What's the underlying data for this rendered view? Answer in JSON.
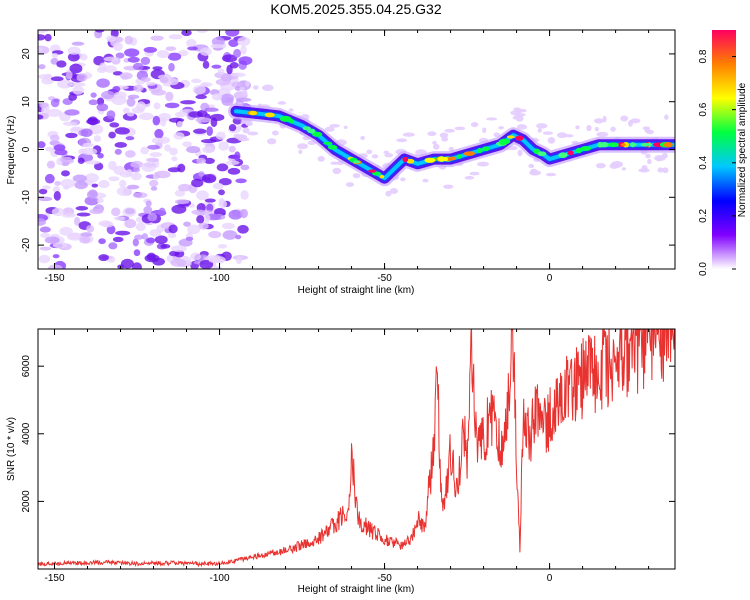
{
  "title": "KOM5.2025.355.04.25.G32",
  "colors": {
    "snr_line": "#e8322f",
    "scatter": "#7b2ff7",
    "axis": "#000000"
  },
  "chart_data": [
    {
      "type": "heatmap",
      "name": "spectrogram",
      "title": "KOM5.2025.355.04.25.G32",
      "xlabel": "Height of straight line (km)",
      "ylabel": "Frequency (Hz)",
      "xlim": [
        -155,
        38
      ],
      "ylim": [
        -25,
        25
      ],
      "xticks": [
        -150,
        -100,
        -50,
        0
      ],
      "yticks": [
        20,
        10,
        0,
        -10,
        -20
      ],
      "xtick_labels": [
        "-150",
        "-100",
        "-50",
        "0"
      ],
      "ytick_labels": [
        "20",
        "10",
        "0",
        "-10",
        "-20"
      ],
      "ridge": {
        "x": [
          -95,
          -88,
          -82,
          -75,
          -70,
          -65,
          -60,
          -55,
          -50,
          -47,
          -44,
          -40,
          -35,
          -30,
          -25,
          -20,
          -15,
          -11,
          -8,
          -5,
          -2,
          0,
          5,
          10,
          15,
          20,
          25,
          30,
          38
        ],
        "y": [
          8,
          7.5,
          7,
          5,
          3,
          0,
          -2,
          -4,
          -6,
          -4,
          -2,
          -3,
          -2,
          -2,
          -1,
          0,
          1,
          3,
          2,
          0,
          -1,
          -2,
          -1,
          0,
          1,
          1,
          1,
          1,
          1
        ]
      },
      "colorbar": {
        "label": "Normalized spectral amplitude",
        "range": [
          0.0,
          0.9
        ],
        "ticks": [
          0.0,
          0.2,
          0.4,
          0.6,
          0.8
        ],
        "tick_labels": [
          "0.0",
          "0.2",
          "0.4",
          "0.6",
          "0.8"
        ],
        "colors": [
          "#ffffff",
          "#8000ff",
          "#0000ff",
          "#00c8ff",
          "#00ff40",
          "#ffff00",
          "#ff8000",
          "#ff0060"
        ]
      }
    },
    {
      "type": "line",
      "name": "snr",
      "xlabel": "Height of straight line (km)",
      "ylabel": "SNR (10 * v/v)",
      "xlim": [
        -155,
        38
      ],
      "ylim": [
        0,
        7100
      ],
      "xticks": [
        -150,
        -100,
        -50,
        0
      ],
      "yticks": [
        2000,
        4000,
        6000
      ],
      "xtick_labels": [
        "-150",
        "-100",
        "-50",
        "0"
      ],
      "ytick_labels": [
        "2000",
        "4000",
        "6000"
      ],
      "series": [
        {
          "name": "SNR",
          "x": [
            -155,
            -145,
            -135,
            -125,
            -115,
            -105,
            -100,
            -95,
            -90,
            -85,
            -80,
            -75,
            -70,
            -65,
            -61,
            -60,
            -59,
            -58,
            -55,
            -50,
            -45,
            -42,
            -40,
            -38,
            -36,
            -35,
            -34,
            -33,
            -32,
            -30,
            -28,
            -26,
            -25,
            -24,
            -22,
            -20,
            -18,
            -16,
            -14,
            -13,
            -12,
            -11,
            -10,
            -9,
            -8,
            -6,
            -4,
            -2,
            0,
            2,
            5,
            10,
            15,
            20,
            25,
            30,
            35,
            38
          ],
          "y": [
            150,
            180,
            200,
            160,
            180,
            150,
            170,
            250,
            350,
            450,
            550,
            700,
            900,
            1300,
            1800,
            3600,
            2300,
            1500,
            1200,
            900,
            700,
            900,
            1500,
            1200,
            2800,
            3400,
            6000,
            2200,
            1800,
            3500,
            2200,
            4200,
            3000,
            6600,
            3500,
            3800,
            4500,
            4200,
            3600,
            4500,
            6200,
            6800,
            3500,
            600,
            4400,
            3800,
            4800,
            4300,
            4400,
            4800,
            5200,
            5600,
            6000,
            6200,
            6500,
            6700,
            6900,
            7000
          ]
        }
      ]
    }
  ]
}
